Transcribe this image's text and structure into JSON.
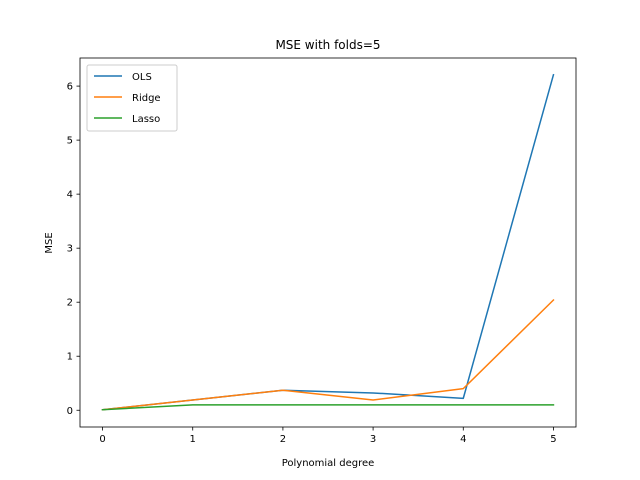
{
  "chart_data": {
    "type": "line",
    "title": "MSE with folds=5",
    "xlabel": "Polynomial degree",
    "ylabel": "MSE",
    "x": [
      0,
      1,
      2,
      3,
      4,
      5
    ],
    "xlim": [
      -0.25,
      5.25
    ],
    "ylim": [
      -0.31,
      6.52
    ],
    "xticks": [
      "0",
      "1",
      "2",
      "3",
      "4",
      "5"
    ],
    "yticks": [
      "0",
      "1",
      "2",
      "3",
      "4",
      "5",
      "6"
    ],
    "grid": false,
    "legend_position": "top-left",
    "series": [
      {
        "name": "OLS",
        "color": "#1f77b4",
        "values": [
          0.01,
          0.19,
          0.37,
          0.32,
          0.22,
          6.21
        ]
      },
      {
        "name": "Ridge",
        "color": "#ff7f0e",
        "values": [
          0.01,
          0.19,
          0.37,
          0.19,
          0.4,
          2.04
        ]
      },
      {
        "name": "Lasso",
        "color": "#2ca02c",
        "values": [
          0.01,
          0.1,
          0.1,
          0.1,
          0.1,
          0.1
        ]
      }
    ]
  }
}
